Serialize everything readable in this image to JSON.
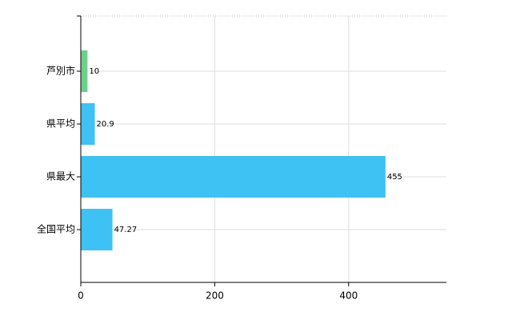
{
  "chart_data": {
    "type": "bar",
    "orientation": "horizontal",
    "categories": [
      "芦別市",
      "県平均",
      "県最大",
      "全国平均"
    ],
    "values": [
      10,
      20.9,
      455,
      47.27
    ],
    "colors": [
      "#6dd08a",
      "#3ec1f3",
      "#3ec1f3",
      "#3ec1f3"
    ],
    "xlim": [
      0,
      546
    ],
    "xticks": [
      0,
      200,
      400
    ],
    "grid": true
  }
}
